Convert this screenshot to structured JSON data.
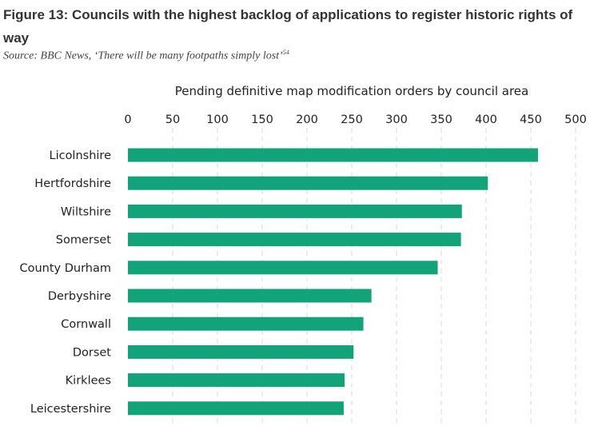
{
  "figure": {
    "title": "Figure 13: Councils with the highest backlog of applications to register historic rights of way",
    "source": "Source: BBC News, ‘There will be many footpaths simply lost’",
    "source_note": "54"
  },
  "chart_data": {
    "type": "bar",
    "orientation": "horizontal",
    "title": "Pending definitive map modification orders by council area",
    "xlabel": "",
    "ylabel": "",
    "xlim": [
      0,
      500
    ],
    "ticks": [
      0,
      50,
      100,
      150,
      200,
      250,
      300,
      350,
      400,
      450,
      500
    ],
    "x_axis_position": "top",
    "grid": true,
    "categories": [
      "Licolnshire",
      "Hertfordshire",
      "Wiltshire",
      "Somerset",
      "County Durham",
      "Derbyshire",
      "Cornwall",
      "Dorset",
      "Kirklees",
      "Leicestershire"
    ],
    "values": [
      458,
      402,
      373,
      372,
      346,
      272,
      263,
      252,
      242,
      241
    ],
    "bar_color": "#12a37a"
  }
}
